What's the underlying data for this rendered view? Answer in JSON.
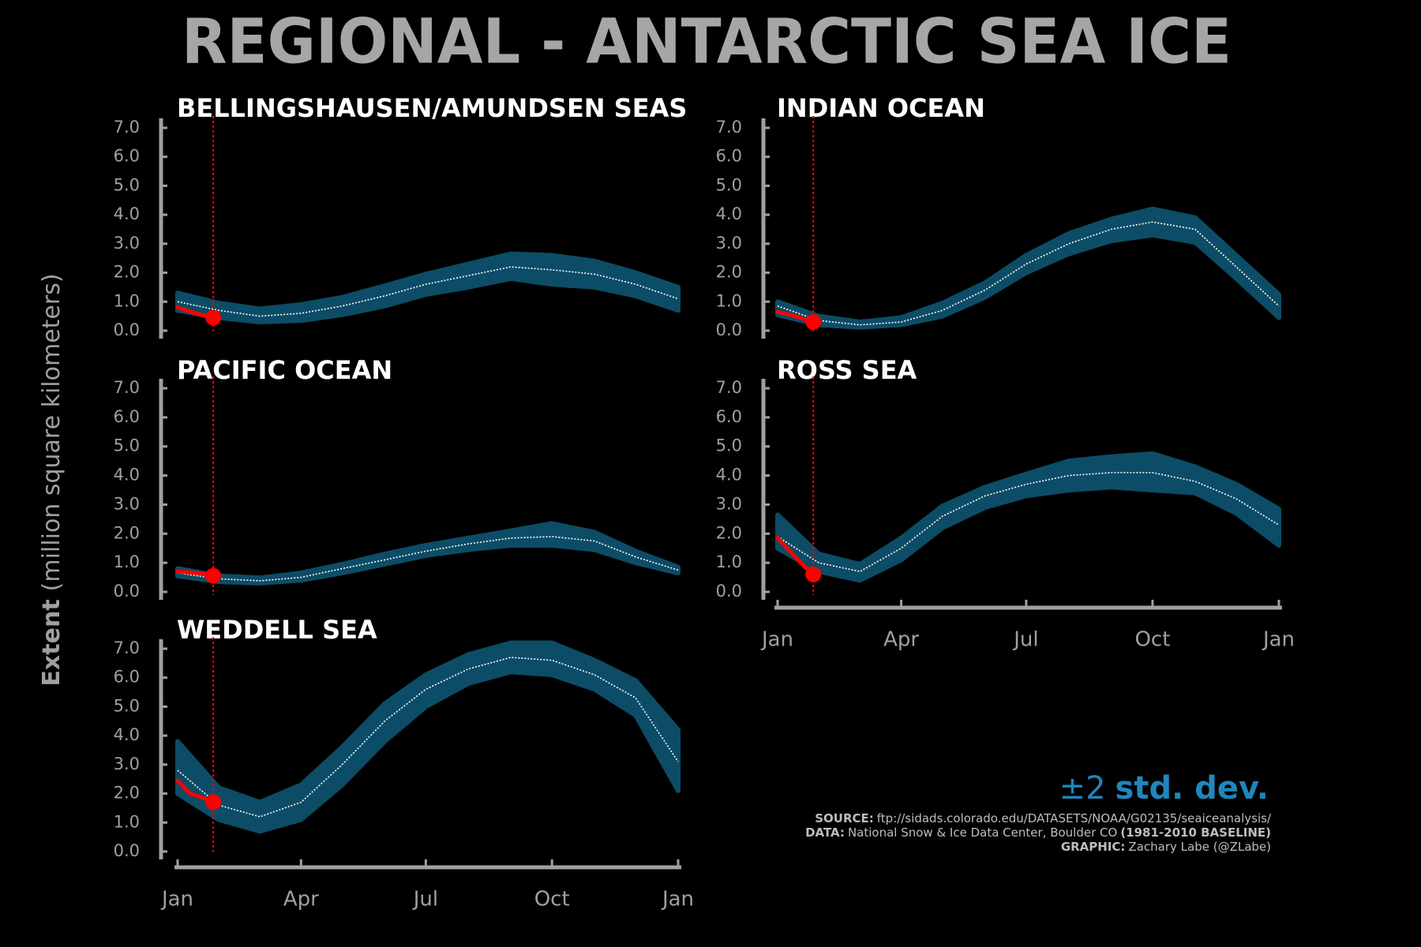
{
  "title": "REGIONAL - ANTARCTIC SEA ICE",
  "y_label_bold": "Extent",
  "y_label": "(million square kilometers)",
  "legend_symbol": "±2",
  "legend_text": "std. dev.",
  "legend_color": "#1f86bd",
  "source": {
    "label": "SOURCE:",
    "text": "ftp://sidads.colorado.edu/DATASETS/NOAA/G02135/seaiceanalysis/"
  },
  "data": {
    "label": "DATA:",
    "text": "National Snow & Ice Data Center, Boulder CO",
    "note": "(1981-2010 BASELINE)"
  },
  "graphic": {
    "label": "GRAPHIC:",
    "text": "Zachary Labe (@ZLabe)"
  },
  "chart_data": [
    {
      "type": "line",
      "title": "BELLINGSHAUSEN/AMUNDSEN SEAS",
      "x": [
        1,
        31,
        61,
        91,
        121,
        152,
        182,
        213,
        244,
        274,
        305,
        335,
        366
      ],
      "mean": [
        1.0,
        0.7,
        0.5,
        0.6,
        0.85,
        1.2,
        1.6,
        1.9,
        2.2,
        2.1,
        1.95,
        1.6,
        1.1
      ],
      "band_low": [
        0.7,
        0.45,
        0.3,
        0.35,
        0.55,
        0.85,
        1.25,
        1.5,
        1.8,
        1.6,
        1.5,
        1.2,
        0.7
      ],
      "band_high": [
        1.3,
        0.95,
        0.75,
        0.9,
        1.15,
        1.55,
        1.95,
        2.3,
        2.65,
        2.6,
        2.4,
        2.0,
        1.5
      ],
      "current_x": [
        1,
        14,
        27
      ],
      "current": [
        0.8,
        0.6,
        0.45
      ],
      "band_color": "#0d4c66",
      "mean_color": "#ffffff",
      "current_color": "#ff0000",
      "xlim": [
        1,
        366
      ],
      "ylim": [
        0,
        7
      ],
      "yticks": [
        {
          "value": 0,
          "label": "0.0"
        },
        {
          "value": 1,
          "label": "1.0"
        },
        {
          "value": 2,
          "label": "2.0"
        },
        {
          "value": 3,
          "label": "3.0"
        },
        {
          "value": 4,
          "label": "4.0"
        },
        {
          "value": 5,
          "label": "5.0"
        },
        {
          "value": 6,
          "label": "6.0"
        },
        {
          "value": 7,
          "label": "7.0"
        }
      ]
    },
    {
      "type": "line",
      "title": "INDIAN OCEAN",
      "x": [
        1,
        31,
        61,
        91,
        121,
        152,
        182,
        213,
        244,
        274,
        305,
        335,
        366
      ],
      "mean": [
        0.85,
        0.35,
        0.2,
        0.3,
        0.7,
        1.4,
        2.3,
        3.0,
        3.5,
        3.75,
        3.5,
        2.2,
        0.85
      ],
      "band_low": [
        0.55,
        0.2,
        0.12,
        0.2,
        0.5,
        1.15,
        2.0,
        2.65,
        3.1,
        3.3,
        3.05,
        1.8,
        0.45
      ],
      "band_high": [
        1.0,
        0.5,
        0.3,
        0.45,
        0.95,
        1.65,
        2.6,
        3.35,
        3.85,
        4.2,
        3.9,
        2.6,
        1.25
      ],
      "current_x": [
        1,
        14,
        27
      ],
      "current": [
        0.65,
        0.5,
        0.3
      ],
      "band_color": "#0d4c66",
      "mean_color": "#ffffff",
      "current_color": "#ff0000",
      "xlim": [
        1,
        366
      ],
      "ylim": [
        0,
        7
      ],
      "yticks": [
        {
          "value": 0,
          "label": "0.0"
        },
        {
          "value": 1,
          "label": "1.0"
        },
        {
          "value": 2,
          "label": "2.0"
        },
        {
          "value": 3,
          "label": "3.0"
        },
        {
          "value": 4,
          "label": "4.0"
        },
        {
          "value": 5,
          "label": "5.0"
        },
        {
          "value": 6,
          "label": "6.0"
        },
        {
          "value": 7,
          "label": "7.0"
        }
      ]
    },
    {
      "type": "line",
      "title": "PACIFIC OCEAN",
      "x": [
        1,
        31,
        61,
        91,
        121,
        152,
        182,
        213,
        244,
        274,
        305,
        335,
        366
      ],
      "mean": [
        0.65,
        0.45,
        0.38,
        0.5,
        0.8,
        1.1,
        1.4,
        1.65,
        1.85,
        1.9,
        1.75,
        1.2,
        0.75
      ],
      "band_low": [
        0.55,
        0.35,
        0.3,
        0.4,
        0.65,
        0.95,
        1.25,
        1.45,
        1.6,
        1.6,
        1.45,
        1.0,
        0.65
      ],
      "band_high": [
        0.8,
        0.55,
        0.48,
        0.65,
        0.95,
        1.3,
        1.6,
        1.85,
        2.1,
        2.35,
        2.05,
        1.4,
        0.85
      ],
      "current_x": [
        1,
        14,
        27
      ],
      "current": [
        0.7,
        0.65,
        0.55
      ],
      "band_color": "#0d4c66",
      "mean_color": "#ffffff",
      "current_color": "#ff0000",
      "xlim": [
        1,
        366
      ],
      "ylim": [
        0,
        7
      ],
      "yticks": [
        {
          "value": 0,
          "label": "0.0"
        },
        {
          "value": 1,
          "label": "1.0"
        },
        {
          "value": 2,
          "label": "2.0"
        },
        {
          "value": 3,
          "label": "3.0"
        },
        {
          "value": 4,
          "label": "4.0"
        },
        {
          "value": 5,
          "label": "5.0"
        },
        {
          "value": 6,
          "label": "6.0"
        },
        {
          "value": 7,
          "label": "7.0"
        }
      ]
    },
    {
      "type": "line",
      "title": "ROSS SEA",
      "x": [
        1,
        31,
        61,
        91,
        121,
        152,
        182,
        213,
        244,
        274,
        305,
        335,
        366
      ],
      "mean": [
        1.9,
        1.0,
        0.7,
        1.5,
        2.6,
        3.3,
        3.7,
        4.0,
        4.1,
        4.1,
        3.8,
        3.2,
        2.3
      ],
      "band_low": [
        1.5,
        0.7,
        0.4,
        1.1,
        2.2,
        2.9,
        3.3,
        3.5,
        3.6,
        3.5,
        3.4,
        2.7,
        1.6
      ],
      "band_high": [
        2.65,
        1.3,
        0.95,
        1.85,
        2.95,
        3.6,
        4.05,
        4.5,
        4.65,
        4.75,
        4.3,
        3.7,
        2.85
      ],
      "current_x": [
        1,
        10,
        20,
        27
      ],
      "current": [
        1.85,
        1.4,
        0.9,
        0.6
      ],
      "band_color": "#0d4c66",
      "mean_color": "#ffffff",
      "current_color": "#ff0000",
      "xlim": [
        1,
        366
      ],
      "ylim": [
        0,
        7
      ],
      "xticks": [
        {
          "value": 1,
          "label": "Jan"
        },
        {
          "value": 91,
          "label": "Apr"
        },
        {
          "value": 182,
          "label": "Jul"
        },
        {
          "value": 274,
          "label": "Oct"
        },
        {
          "value": 366,
          "label": "Jan"
        }
      ],
      "yticks": [
        {
          "value": 0,
          "label": "0.0"
        },
        {
          "value": 1,
          "label": "1.0"
        },
        {
          "value": 2,
          "label": "2.0"
        },
        {
          "value": 3,
          "label": "3.0"
        },
        {
          "value": 4,
          "label": "4.0"
        },
        {
          "value": 5,
          "label": "5.0"
        },
        {
          "value": 6,
          "label": "6.0"
        },
        {
          "value": 7,
          "label": "7.0"
        }
      ]
    },
    {
      "type": "line",
      "title": "WEDDELL SEA",
      "x": [
        1,
        31,
        61,
        91,
        121,
        152,
        182,
        213,
        244,
        274,
        305,
        335,
        366
      ],
      "mean": [
        2.8,
        1.6,
        1.2,
        1.7,
        3.0,
        4.5,
        5.6,
        6.3,
        6.7,
        6.6,
        6.1,
        5.3,
        3.1
      ],
      "band_low": [
        2.0,
        1.1,
        0.7,
        1.1,
        2.3,
        3.8,
        5.0,
        5.8,
        6.2,
        6.1,
        5.6,
        4.7,
        2.1
      ],
      "band_high": [
        3.8,
        2.2,
        1.7,
        2.3,
        3.6,
        5.1,
        6.1,
        6.8,
        7.2,
        7.2,
        6.6,
        5.9,
        4.2
      ],
      "current_x": [
        1,
        10,
        20,
        27
      ],
      "current": [
        2.45,
        2.0,
        1.85,
        1.7
      ],
      "band_color": "#0d4c66",
      "mean_color": "#ffffff",
      "current_color": "#ff0000",
      "xlim": [
        1,
        366
      ],
      "ylim": [
        0,
        7
      ],
      "xticks": [
        {
          "value": 1,
          "label": "Jan"
        },
        {
          "value": 91,
          "label": "Apr"
        },
        {
          "value": 182,
          "label": "Jul"
        },
        {
          "value": 274,
          "label": "Oct"
        },
        {
          "value": 366,
          "label": "Jan"
        }
      ],
      "yticks": [
        {
          "value": 0,
          "label": "0.0"
        },
        {
          "value": 1,
          "label": "1.0"
        },
        {
          "value": 2,
          "label": "2.0"
        },
        {
          "value": 3,
          "label": "3.0"
        },
        {
          "value": 4,
          "label": "4.0"
        },
        {
          "value": 5,
          "label": "5.0"
        },
        {
          "value": 6,
          "label": "6.0"
        },
        {
          "value": 7,
          "label": "7.0"
        }
      ]
    }
  ]
}
